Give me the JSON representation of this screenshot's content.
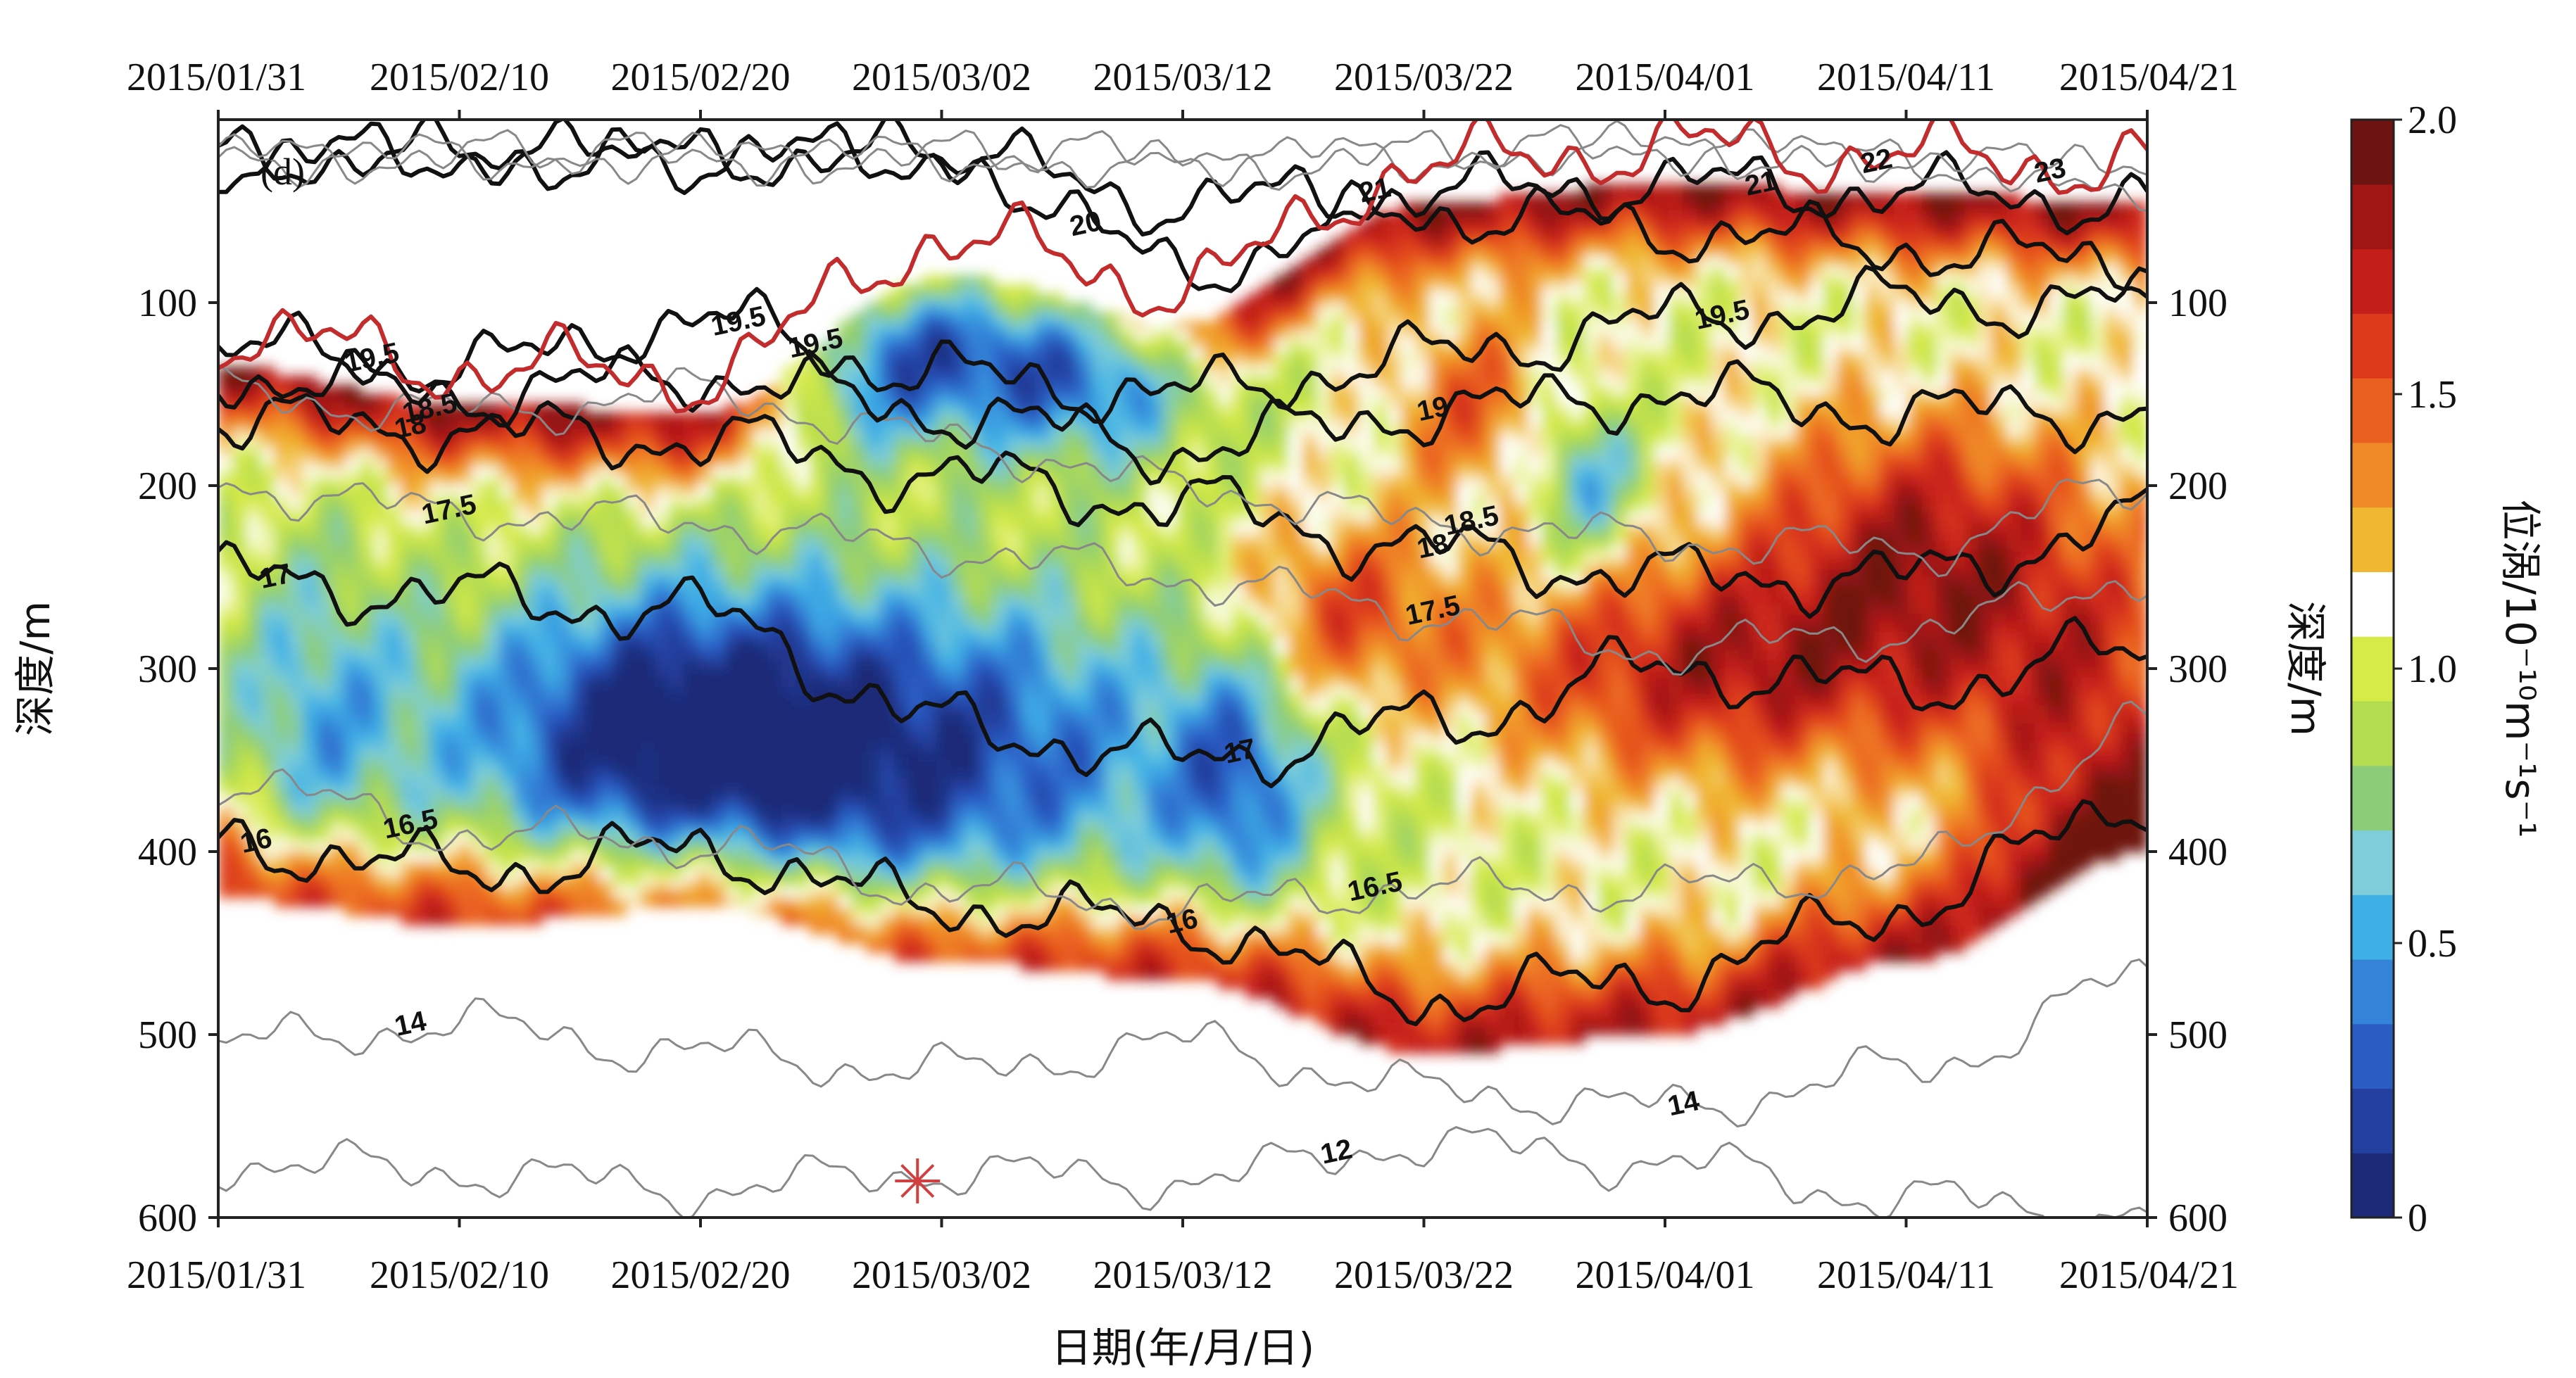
{
  "chart_data": {
    "type": "heatmap",
    "panel_label": "(d)",
    "xlabel": "日期(年/月/日)",
    "ylabel_left": "深度/m",
    "ylabel_right": "深度/m",
    "colorbar_label": "位涡/10⁻¹⁰m⁻¹s⁻¹",
    "x_ticks": [
      "2015/01/31",
      "2015/02/10",
      "2015/02/20",
      "2015/03/02",
      "2015/03/12",
      "2015/03/22",
      "2015/04/01",
      "2015/04/11",
      "2015/04/21"
    ],
    "y_ticks": [
      "100",
      "200",
      "300",
      "400",
      "500",
      "600"
    ],
    "y_tick_values": [
      100,
      200,
      300,
      400,
      500,
      600
    ],
    "ylim": [
      0,
      600
    ],
    "y_reversed": true,
    "colorbar_ticks": [
      "2.0",
      "1.5",
      "1.0",
      "0.5",
      "0"
    ],
    "colorbar_tick_values": [
      2.0,
      1.5,
      1.0,
      0.5,
      0
    ],
    "colorbar_range": [
      0,
      2.0
    ],
    "colorscale": [
      "#1c2a78",
      "#2340a0",
      "#2a5cc4",
      "#3383d8",
      "#3fb0e6",
      "#7ecdd8",
      "#8ccc78",
      "#b4dc50",
      "#d6ea48",
      "#ffffff",
      "#f0b830",
      "#f08a28",
      "#ea6020",
      "#dc3a1a",
      "#c41e1a",
      "#a01614",
      "#6e1410"
    ],
    "contours": [
      {
        "label": "12",
        "color": "#888888",
        "depth": [
          570,
          575,
          585,
          575,
          580,
          560,
          570,
          590,
          600
        ]
      },
      {
        "label": "14",
        "color": "#888888",
        "depth": [
          505,
          495,
          510,
          520,
          505,
          530,
          540,
          520,
          470
        ]
      },
      {
        "label": "16",
        "color": "#111111",
        "depth": [
          395,
          410,
          400,
          430,
          440,
          480,
          470,
          430,
          370
        ]
      },
      {
        "label": "16.5",
        "color": "#888888",
        "depth": [
          360,
          390,
          395,
          420,
          430,
          420,
          420,
          410,
          330
        ]
      },
      {
        "label": "17",
        "color": "#111111",
        "depth": [
          250,
          260,
          270,
          330,
          350,
          330,
          300,
          310,
          290
        ]
      },
      {
        "label": "17.5",
        "color": "#888888",
        "depth": [
          200,
          215,
          220,
          235,
          250,
          270,
          290,
          280,
          250
        ]
      },
      {
        "label": "18",
        "color": "#111111",
        "depth": [
          165,
          170,
          175,
          195,
          210,
          235,
          250,
          250,
          220
        ]
      },
      {
        "label": "18.5",
        "color": "#888888",
        "depth": [
          150,
          160,
          150,
          175,
          200,
          220,
          230,
          235,
          200
        ]
      },
      {
        "label": "19",
        "color": "#111111",
        "depth": [
          140,
          150,
          140,
          160,
          180,
          160,
          150,
          160,
          160
        ]
      },
      {
        "label": "19.5",
        "color": "#111111",
        "depth": [
          125,
          135,
          110,
          140,
          150,
          130,
          110,
          100,
          100
        ]
      },
      {
        "label": "20",
        "color": "#111111",
        "depth": [
          20,
          20,
          20,
          20,
          80,
          50,
          60,
          70,
          80
        ]
      },
      {
        "label": "21",
        "color": "#111111",
        "depth": [
          20,
          20,
          20,
          20,
          45,
          40,
          35,
          40,
          45
        ]
      },
      {
        "label": "22",
        "color": "#888888",
        "depth": [
          20,
          20,
          20,
          20,
          25,
          20,
          15,
          25,
          30
        ]
      },
      {
        "label": "23",
        "color": "#888888",
        "depth": [
          20,
          20,
          20,
          20,
          20,
          20,
          15,
          20,
          35
        ]
      }
    ],
    "mixed_layer_depth": {
      "color": "#c22c2c",
      "depth": [
        115,
        135,
        140,
        65,
        90,
        25,
        15,
        20,
        25
      ]
    },
    "contour_label_texts": [
      "12",
      "14",
      "14",
      "16",
      "16",
      "16.5",
      "16.5",
      "17",
      "17",
      "17.5",
      "17.5",
      "18",
      "18",
      "18.5",
      "18.5",
      "19",
      "19.5",
      "19.5",
      "19.5",
      "19.5",
      "20",
      "21",
      "21",
      "22",
      "23"
    ],
    "marker": {
      "type": "asterisk",
      "date": "2015/02/29",
      "depth": 580,
      "color": "#d04040"
    }
  }
}
